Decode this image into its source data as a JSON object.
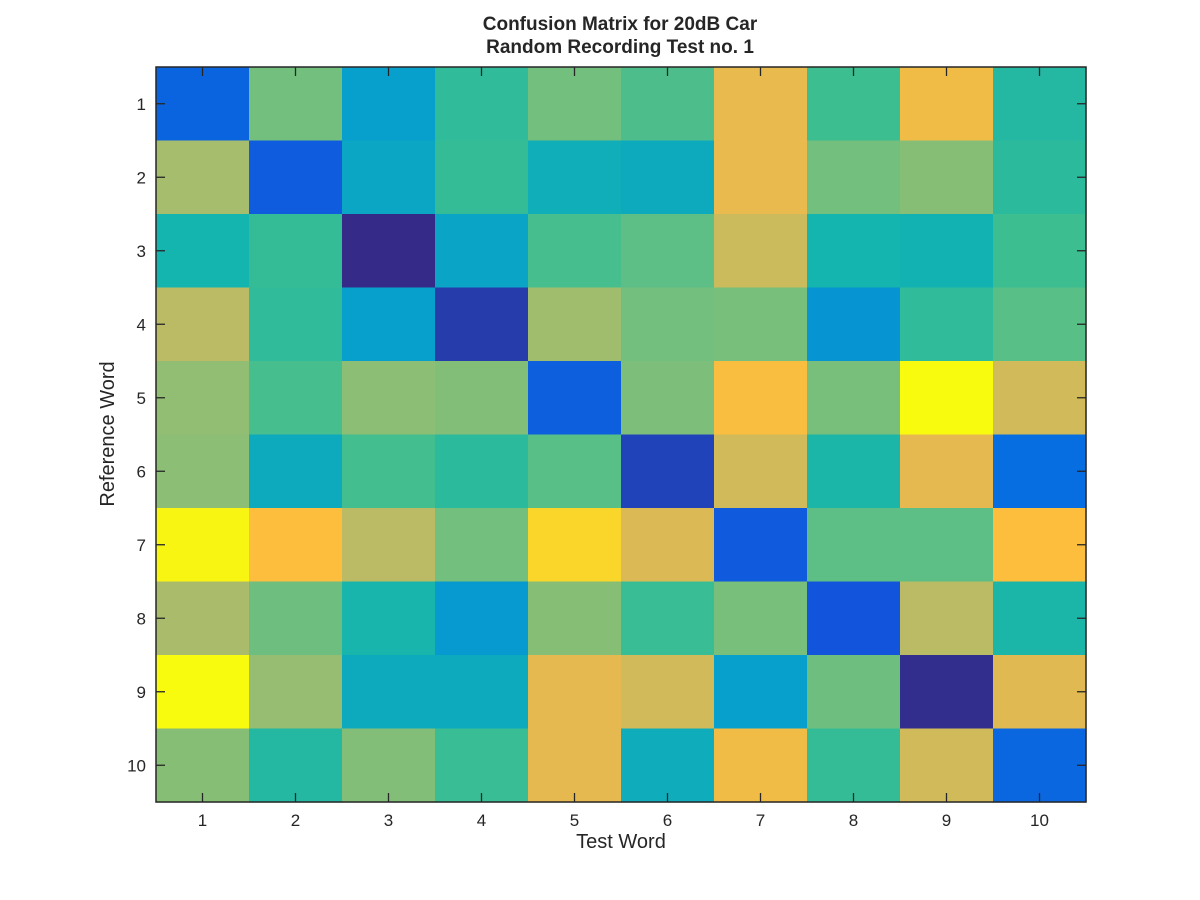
{
  "chart_data": {
    "type": "heatmap",
    "title_line1": "Confusion Matrix for 20dB Car",
    "title_line2": "Random Recording Test no. 1",
    "xlabel": "Test Word",
    "ylabel": "Reference Word",
    "x_categories": [
      "1",
      "2",
      "3",
      "4",
      "5",
      "6",
      "7",
      "8",
      "9",
      "10"
    ],
    "y_categories": [
      "1",
      "2",
      "3",
      "4",
      "5",
      "6",
      "7",
      "8",
      "9",
      "10"
    ],
    "colormap": "parula",
    "color_range": [
      0,
      1
    ],
    "grid": false,
    "legend": "none",
    "values": [
      [
        0.18,
        0.6,
        0.3,
        0.47,
        0.6,
        0.53,
        0.83,
        0.5,
        0.86,
        0.44
      ],
      [
        0.7,
        0.15,
        0.33,
        0.48,
        0.37,
        0.35,
        0.83,
        0.6,
        0.64,
        0.46
      ],
      [
        0.4,
        0.48,
        0.0,
        0.32,
        0.52,
        0.56,
        0.77,
        0.4,
        0.39,
        0.5
      ],
      [
        0.74,
        0.47,
        0.3,
        0.05,
        0.69,
        0.6,
        0.61,
        0.28,
        0.47,
        0.55
      ],
      [
        0.66,
        0.52,
        0.65,
        0.63,
        0.16,
        0.62,
        0.89,
        0.61,
        1.0,
        0.78
      ],
      [
        0.65,
        0.35,
        0.51,
        0.46,
        0.55,
        0.07,
        0.78,
        0.42,
        0.82,
        0.22
      ],
      [
        0.99,
        0.9,
        0.74,
        0.6,
        0.94,
        0.8,
        0.14,
        0.56,
        0.56,
        0.9
      ],
      [
        0.71,
        0.59,
        0.41,
        0.29,
        0.64,
        0.49,
        0.61,
        0.12,
        0.74,
        0.42
      ],
      [
        1.0,
        0.67,
        0.35,
        0.35,
        0.82,
        0.78,
        0.3,
        0.59,
        0.01,
        0.81
      ],
      [
        0.64,
        0.44,
        0.63,
        0.49,
        0.82,
        0.36,
        0.86,
        0.48,
        0.78,
        0.19
      ]
    ]
  }
}
